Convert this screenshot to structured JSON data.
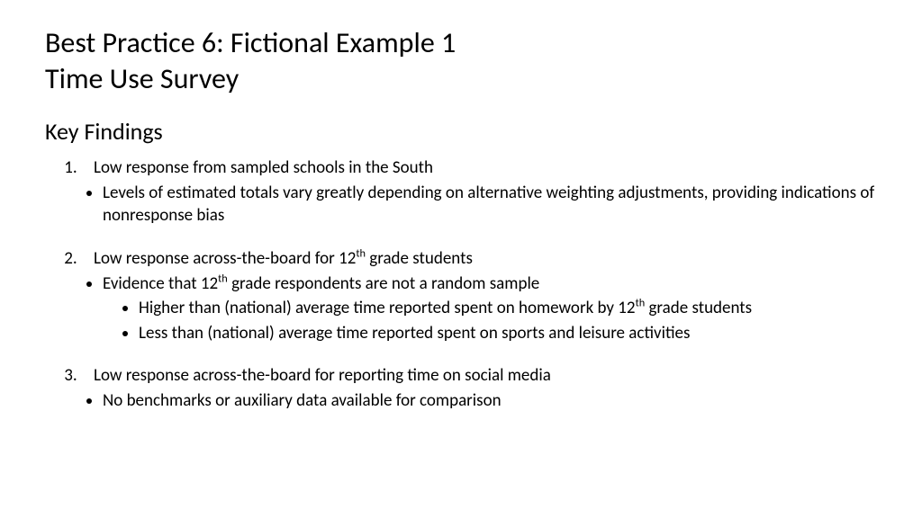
{
  "title_line1": "Best Practice 6:  Fictional Example 1",
  "title_line2": "Time Use Survey",
  "subheading": "Key Findings",
  "items": {
    "i1": "Low response from sampled schools in the South",
    "i1a": "Levels of estimated totals vary greatly depending on alternative weighting adjustments, providing indications of nonresponse bias",
    "i2_pre": "Low response across-the-board for 12",
    "i2_sup": "th",
    "i2_post": " grade students",
    "i2a_pre": "Evidence that 12",
    "i2a_sup": "th",
    "i2a_post": " grade respondents are not a random sample",
    "i2a1_pre": "Higher than (national) average time reported spent on homework by 12",
    "i2a1_sup": "th",
    "i2a1_post": " grade students",
    "i2a2": "Less than (national) average time reported spent on sports and leisure activities",
    "i3": "Low response across-the-board for reporting time on social media",
    "i3a": "No benchmarks or auxiliary data available for comparison"
  },
  "styling": {
    "background_color": "#ffffff",
    "text_color": "#000000",
    "title_fontsize_pt": 24,
    "subheading_fontsize_pt": 20,
    "body_fontsize_pt": 14,
    "font_family": "Calibri"
  }
}
